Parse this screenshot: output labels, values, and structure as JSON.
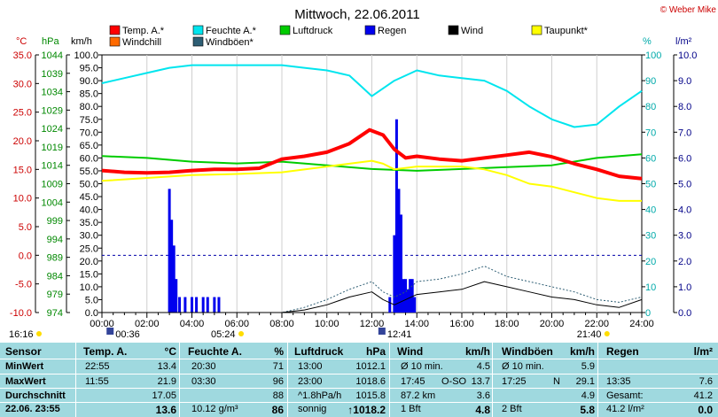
{
  "title": "Mittwoch, 22.06.2011",
  "copyright": "© Weber Mike",
  "colors": {
    "temp": "#ff0000",
    "hum": "#00e5ee",
    "press": "#00cc00",
    "rain": "#0000ee",
    "wind": "#000000",
    "dew": "#ffff00",
    "chill": "#ff6a00",
    "gust": "#2e5e74",
    "stats_bg": "#9fd9df"
  },
  "legend": [
    {
      "label": "Temp. A.*",
      "color": "#ff0000"
    },
    {
      "label": "Feuchte A.*",
      "color": "#00e5ee"
    },
    {
      "label": "Luftdruck",
      "color": "#00cc00"
    },
    {
      "label": "Regen",
      "color": "#0000ee"
    },
    {
      "label": "Wind",
      "color": "#000000"
    },
    {
      "label": "Taupunkt*",
      "color": "#ffff00"
    },
    {
      "label": "Windchill",
      "color": "#ff6a00"
    },
    {
      "label": "Windböen*",
      "color": "#2e5e74"
    }
  ],
  "units": {
    "temp": "°C",
    "press": "hPa",
    "wind": "km/h",
    "hum": "%",
    "rain": "l/m²"
  },
  "axes": {
    "temp_ticks": [
      "35.0",
      "30.0",
      "25.0",
      "20.0",
      "15.0",
      "10.0",
      "5.0",
      "0.0",
      "-5.0",
      "-10.0"
    ],
    "press_ticks": [
      "1044",
      "1039",
      "1034",
      "1029",
      "1024",
      "1019",
      "1014",
      "1009",
      "1004",
      "999",
      "994",
      "989",
      "984",
      "979",
      "974"
    ],
    "wind_ticks": [
      "100.0",
      "95.0",
      "90.0",
      "85.0",
      "80.0",
      "75.0",
      "70.0",
      "65.0",
      "60.0",
      "55.0",
      "50.0",
      "45.0",
      "40.0",
      "35.0",
      "30.0",
      "25.0",
      "20.0",
      "15.0",
      "10.0",
      "5.0",
      "0.0"
    ],
    "hum_ticks": [
      "100",
      "90",
      "80",
      "70",
      "60",
      "50",
      "40",
      "30",
      "20",
      "10",
      "0"
    ],
    "rain_ticks": [
      "10.0",
      "9.0",
      "8.0",
      "7.0",
      "6.0",
      "5.0",
      "4.0",
      "3.0",
      "2.0",
      "1.0",
      "0.0"
    ],
    "x_ticks": [
      "00:00",
      "02:00",
      "04:00",
      "06:00",
      "08:00",
      "10:00",
      "12:00",
      "14:00",
      "16:00",
      "18:00",
      "20:00",
      "22:00",
      "24:00"
    ]
  },
  "sun": {
    "sunrise": "05:24",
    "sunset": "21:40",
    "moonrise": "00:36",
    "moonset": "12:41",
    "left_time": "16:16"
  },
  "chart_data": {
    "type": "line",
    "x_unit": "hours",
    "x_range": [
      0,
      24
    ],
    "series": [
      {
        "name": "Temp. A.*",
        "axis": "temp",
        "x": [
          0,
          1,
          2,
          3,
          4,
          5,
          6,
          7,
          8,
          9,
          10,
          11,
          11.9,
          12.5,
          13,
          13.5,
          14,
          15,
          16,
          17,
          18,
          19,
          20,
          21,
          22,
          23,
          24
        ],
        "values": [
          14.8,
          14.5,
          14.4,
          14.5,
          14.8,
          15.0,
          15.0,
          15.2,
          16.8,
          17.3,
          18.0,
          19.5,
          21.9,
          21.0,
          18.5,
          17.0,
          17.3,
          16.8,
          16.5,
          17.0,
          17.5,
          18.0,
          17.2,
          16.0,
          15.0,
          13.8,
          13.4
        ]
      },
      {
        "name": "Feuchte A.*",
        "axis": "hum",
        "x": [
          0,
          1,
          2,
          3,
          4,
          5,
          6,
          7,
          8,
          9,
          10,
          11,
          11.5,
          12,
          12.5,
          13,
          14,
          15,
          16,
          17,
          18,
          19,
          20,
          21,
          22,
          23,
          24
        ],
        "values": [
          89,
          91,
          93,
          95,
          96,
          96,
          96,
          96,
          96,
          95,
          94,
          92,
          88,
          84,
          87,
          90,
          94,
          92,
          91,
          90,
          86,
          80,
          75,
          72,
          73,
          80,
          86
        ]
      },
      {
        "name": "Luftdruck",
        "axis": "press",
        "x": [
          0,
          2,
          4,
          6,
          8,
          10,
          12,
          14,
          16,
          18,
          20,
          22,
          24
        ],
        "values": [
          1016.5,
          1016.0,
          1015.0,
          1014.5,
          1015.0,
          1014.0,
          1013.0,
          1012.5,
          1013.0,
          1013.5,
          1014.0,
          1016.0,
          1017.0
        ]
      },
      {
        "name": "Taupunkt*",
        "axis": "temp",
        "x": [
          0,
          2,
          4,
          6,
          8,
          10,
          11,
          12,
          12.5,
          13,
          14,
          16,
          17,
          18,
          19,
          20,
          21,
          22,
          23,
          24
        ],
        "values": [
          13.0,
          13.5,
          14.0,
          14.2,
          14.5,
          15.5,
          16.0,
          16.5,
          16.0,
          15.0,
          15.5,
          15.5,
          15.0,
          14.0,
          12.5,
          12.0,
          11.0,
          10.0,
          9.5,
          9.5
        ]
      },
      {
        "name": "Wind",
        "axis": "wind",
        "x": [
          0,
          2,
          4,
          6,
          8,
          9,
          10,
          11,
          12,
          12.5,
          13,
          13.5,
          14,
          15,
          16,
          17,
          18,
          19,
          20,
          21,
          22,
          23,
          24
        ],
        "values": [
          0,
          0,
          0,
          0,
          0,
          1,
          3,
          6,
          8,
          5,
          3,
          5,
          7,
          8,
          9,
          12,
          10,
          8,
          6,
          5,
          3,
          2,
          5
        ]
      },
      {
        "name": "Windböen*",
        "axis": "wind",
        "x": [
          0,
          2,
          4,
          6,
          8,
          9,
          10,
          11,
          12,
          12.5,
          13,
          13.5,
          14,
          15,
          16,
          17,
          18,
          19,
          20,
          21,
          22,
          23,
          24
        ],
        "values": [
          0,
          0,
          0,
          0,
          0,
          2,
          5,
          9,
          12,
          8,
          6,
          8,
          12,
          13,
          15,
          18,
          14,
          12,
          10,
          8,
          5,
          4,
          6
        ]
      },
      {
        "name": "Regen",
        "axis": "rain",
        "type": "bar",
        "x": [
          3.0,
          3.1,
          3.2,
          3.3,
          3.45,
          3.7,
          4.0,
          4.2,
          4.5,
          4.7,
          5.0,
          5.2,
          12.8,
          13.0,
          13.1,
          13.2,
          13.3,
          13.4,
          13.5,
          13.6,
          13.7,
          13.8,
          13.9
        ],
        "values": [
          4.8,
          3.6,
          2.6,
          1.3,
          0.6,
          0.6,
          0.6,
          0.6,
          0.6,
          0.6,
          0.6,
          0.6,
          0.6,
          3.0,
          7.5,
          4.8,
          3.8,
          1.3,
          1.3,
          0.9,
          1.3,
          1.3,
          0.6
        ]
      }
    ]
  },
  "stats": {
    "headers": {
      "sensor": "Sensor",
      "temp": "Temp. A.",
      "temp_unit": "°C",
      "hum": "Feuchte A.",
      "hum_unit": "%",
      "press": "Luftdruck",
      "press_unit": "hPa",
      "wind": "Wind",
      "wind_unit": "km/h",
      "gust": "Windböen",
      "gust_unit": "km/h",
      "rain": "Regen",
      "rain_unit": "l/m²"
    },
    "rows": [
      {
        "label": "MinWert",
        "temp_time": "22:55",
        "temp_val": "13.4",
        "hum_time": "20:30",
        "hum_val": "71",
        "press_time": "13:00",
        "press_val": "1012.1",
        "wind_time": "Ø 10 min.",
        "wind_val": "4.5",
        "gust_time": "Ø 10 min.",
        "gust_val": "5.9",
        "rain_time": "",
        "rain_val": ""
      },
      {
        "label": "MaxWert",
        "temp_time": "11:55",
        "temp_val": "21.9",
        "hum_time": "03:30",
        "hum_val": "96",
        "press_time": "23:00",
        "press_val": "1018.6",
        "wind_time": "17:45",
        "wind_mid": "O-SO",
        "wind_val": "13.7",
        "gust_time": "17:25",
        "gust_mid": "N",
        "gust_val": "29.1",
        "rain_time": "13:35",
        "rain_val": "7.6"
      },
      {
        "label": "Durchschnitt",
        "temp_time": "",
        "temp_val": "17.05",
        "hum_time": "",
        "hum_val": "88",
        "press_time": "^1.8hPa/h",
        "press_val": "1015.8",
        "wind_time": "87.2 km",
        "wind_val": "3.6",
        "gust_time": "",
        "gust_val": "4.9",
        "rain_time": "Gesamt:",
        "rain_val": "41.2"
      },
      {
        "label": "22.06. 23:55",
        "temp_time": "",
        "temp_val": "13.6",
        "hum_time": "10.12 g/m³",
        "hum_val": "86",
        "press_time": "sonnig",
        "press_val": "↑1018.2",
        "wind_time": "1 Bft",
        "wind_val": "4.8",
        "gust_time": "2 Bft",
        "gust_val": "5.8",
        "rain_time": "41.2 l/m²",
        "rain_val": "0.0"
      }
    ]
  }
}
